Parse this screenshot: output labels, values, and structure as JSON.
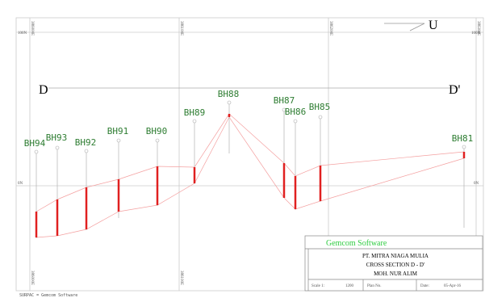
{
  "grid": {
    "northing_labels": [
      "100N",
      "0N",
      "100N",
      "0N"
    ],
    "easting_labels": [
      "386000E",
      "386100E",
      "386200E",
      "386300E"
    ]
  },
  "north_arrow": "U",
  "section": {
    "start": "D",
    "end": "D'"
  },
  "boreholes": [
    "BH94",
    "BH93",
    "BH92",
    "BH91",
    "BH90",
    "BH89",
    "BH88",
    "BH87",
    "BH86",
    "BH85",
    "BH81"
  ],
  "title_block": {
    "software": "Gemcom Software",
    "company": "PT. MITRA NIAGA MULIA",
    "title": "CROSS SECTION D - D'",
    "author": "MOH. NUR ALIM",
    "scale_label": "Scale 1:",
    "scale_value": "1200",
    "plan_label": "Plan No.",
    "date_label": "Date:",
    "date_value": "05-Apr-16"
  },
  "footer": "SURPAC = Gemcom Software"
}
